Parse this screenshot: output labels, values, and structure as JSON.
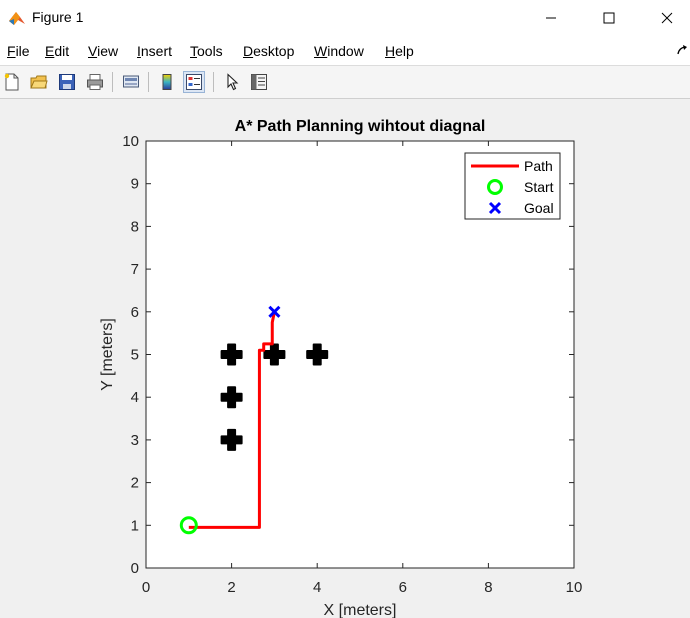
{
  "window": {
    "title": "Figure 1"
  },
  "menu": {
    "items": [
      {
        "label": "File",
        "name": "menu-file"
      },
      {
        "label": "Edit",
        "name": "menu-edit"
      },
      {
        "label": "View",
        "name": "menu-view"
      },
      {
        "label": "Insert",
        "name": "menu-insert"
      },
      {
        "label": "Tools",
        "name": "menu-tools"
      },
      {
        "label": "Desktop",
        "name": "menu-desktop"
      },
      {
        "label": "Window",
        "name": "menu-window"
      },
      {
        "label": "Help",
        "name": "menu-help"
      }
    ]
  },
  "toolbar": {
    "icons": [
      "new-figure-icon",
      "open-file-icon",
      "save-icon",
      "print-icon",
      "link-plot-icon",
      "insert-colorbar-icon",
      "insert-legend-icon",
      "pointer-icon",
      "property-inspector-icon"
    ]
  },
  "chart_data": {
    "type": "line",
    "title": "A* Path Planning wihtout diagnal",
    "xlabel": "X [meters]",
    "ylabel": "Y [meters]",
    "xlim": [
      0,
      10
    ],
    "ylim": [
      0,
      10
    ],
    "xticks": [
      "0",
      "2",
      "4",
      "6",
      "8",
      "10"
    ],
    "yticks": [
      "0",
      "1",
      "2",
      "3",
      "4",
      "5",
      "6",
      "7",
      "8",
      "9",
      "10"
    ],
    "grid": false,
    "legend": {
      "placement": "top-right",
      "entries": [
        "Path",
        "Start",
        "Goal"
      ]
    },
    "series": [
      {
        "name": "Path",
        "style": "line",
        "color": "#ff0000",
        "x": [
          1,
          2.65,
          2.65,
          2.75,
          2.75,
          2.95,
          2.95,
          3
        ],
        "y": [
          0.95,
          0.95,
          5.1,
          5.1,
          5.25,
          5.25,
          5.75,
          6
        ]
      },
      {
        "name": "Start",
        "style": "circle",
        "color": "#00ff00",
        "x": [
          1
        ],
        "y": [
          1
        ]
      },
      {
        "name": "Goal",
        "style": "x",
        "color": "#0000ff",
        "x": [
          3
        ],
        "y": [
          6
        ]
      }
    ],
    "obstacles": {
      "color": "#000000",
      "x": [
        2,
        2,
        2,
        3,
        4
      ],
      "y": [
        3,
        4,
        5,
        5,
        5
      ]
    }
  }
}
